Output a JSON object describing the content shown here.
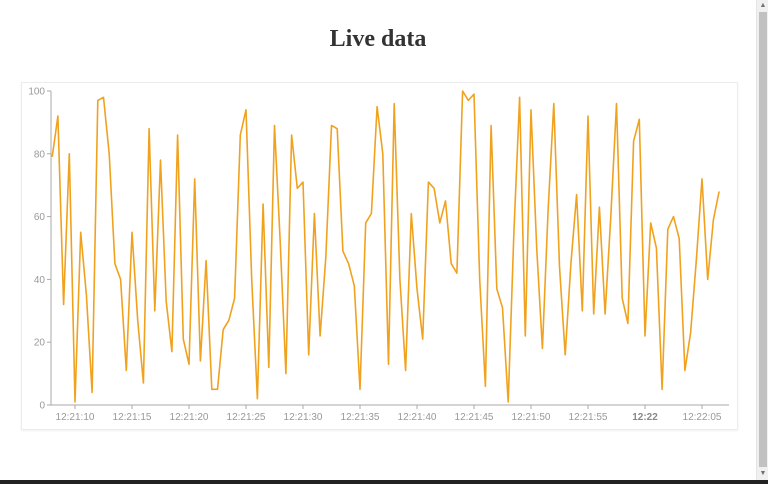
{
  "page": {
    "title": "Live data"
  },
  "scrollbar": {
    "up_arrow": "▲",
    "down_arrow": "▼"
  },
  "colors": {
    "line": "#f0a21e",
    "axis": "#aaaaaa",
    "tick_text": "#999999",
    "title": "#333333"
  },
  "chart_data": {
    "type": "line",
    "title": "Live data",
    "xlabel": "",
    "ylabel": "",
    "ylim": [
      0,
      100
    ],
    "yticks": [
      0,
      20,
      40,
      60,
      80,
      100
    ],
    "xticks": [
      {
        "label": "12:21:10",
        "t": 10,
        "bold": false
      },
      {
        "label": "12:21:15",
        "t": 15,
        "bold": false
      },
      {
        "label": "12:21:20",
        "t": 20,
        "bold": false
      },
      {
        "label": "12:21:25",
        "t": 25,
        "bold": false
      },
      {
        "label": "12:21:30",
        "t": 30,
        "bold": false
      },
      {
        "label": "12:21:35",
        "t": 35,
        "bold": false
      },
      {
        "label": "12:21:40",
        "t": 40,
        "bold": false
      },
      {
        "label": "12:21:45",
        "t": 45,
        "bold": false
      },
      {
        "label": "12:21:50",
        "t": 50,
        "bold": false
      },
      {
        "label": "12:21:55",
        "t": 55,
        "bold": false
      },
      {
        "label": "12:22",
        "t": 60,
        "bold": true
      },
      {
        "label": "12:22:05",
        "t": 65,
        "bold": false
      }
    ],
    "x_start_seconds": 8.0,
    "x_step_seconds": 0.5,
    "grid": false,
    "legend": "none",
    "series": [
      {
        "name": "Live data",
        "values": [
          79,
          92,
          32,
          80,
          1,
          55,
          35,
          4,
          97,
          98,
          80,
          45,
          40,
          11,
          55,
          27,
          7,
          88,
          30,
          78,
          33,
          17,
          86,
          21,
          13,
          72,
          14,
          46,
          5,
          5,
          24,
          27,
          34,
          86,
          94,
          40,
          2,
          64,
          12,
          89,
          52,
          10,
          86,
          69,
          71,
          16,
          61,
          22,
          47,
          89,
          88,
          49,
          45,
          38,
          5,
          58,
          61,
          95,
          80,
          13,
          96,
          40,
          11,
          61,
          37,
          21,
          71,
          69,
          58,
          65,
          45,
          42,
          100,
          97,
          99,
          40,
          6,
          89,
          37,
          31,
          1,
          55,
          98,
          22,
          94,
          50,
          18,
          62,
          96,
          44,
          16,
          45,
          67,
          30,
          92,
          29,
          63,
          29,
          60,
          96,
          34,
          26,
          84,
          91,
          22,
          58,
          50,
          5,
          56,
          60,
          53,
          11,
          23,
          46,
          72,
          40,
          59,
          68
        ]
      }
    ]
  }
}
